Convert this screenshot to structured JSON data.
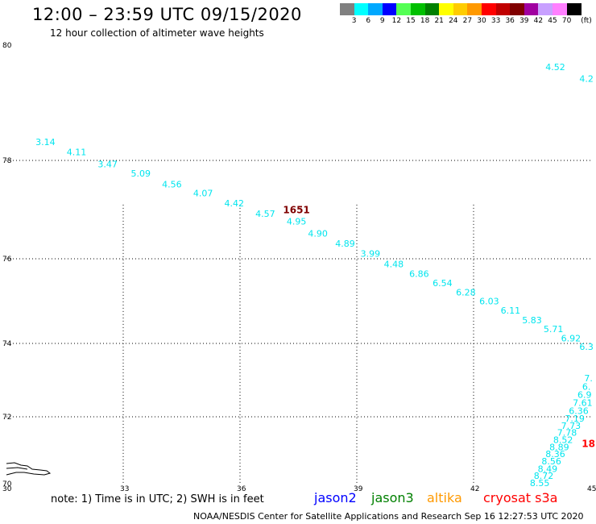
{
  "header": {
    "title": "12:00 – 23:59 UTC 09/15/2020",
    "subtitle": "12 hour collection of altimeter wave heights"
  },
  "legend": {
    "unit_label": "(ft)",
    "bins": [
      {
        "label": "3",
        "color": "#808080"
      },
      {
        "label": "6",
        "color": "#00ffff"
      },
      {
        "label": "9",
        "color": "#00a8ff"
      },
      {
        "label": "12",
        "color": "#0000ff"
      },
      {
        "label": "15",
        "color": "#54ff54"
      },
      {
        "label": "18",
        "color": "#00c000"
      },
      {
        "label": "21",
        "color": "#008000"
      },
      {
        "label": "24",
        "color": "#ffff00"
      },
      {
        "label": "27",
        "color": "#ffcc00"
      },
      {
        "label": "30",
        "color": "#ff9900"
      },
      {
        "label": "33",
        "color": "#ff0000"
      },
      {
        "label": "36",
        "color": "#c00000"
      },
      {
        "label": "39",
        "color": "#800000"
      },
      {
        "label": "42",
        "color": "#a000a0"
      },
      {
        "label": "45",
        "color": "#c8a0ff"
      },
      {
        "label": "70",
        "color": "#ff80ff"
      },
      {
        "label": "",
        "color": "#000000"
      }
    ]
  },
  "footer": {
    "note": "note:  1) Time is in UTC;  2) SWH is in feet",
    "satellites": [
      {
        "name": "jason2",
        "color": "#0000ff"
      },
      {
        "name": "jason3",
        "color": "#008000"
      },
      {
        "name": "altika",
        "color": "#ff9900"
      },
      {
        "name": "cryosat s3a",
        "color": "#ff0000"
      }
    ],
    "credit": "NOAA/NESDIS Center for Satellite Applications and Research    Sep 16 12:27:53 UTC 2020"
  },
  "chart_data": {
    "type": "scatter",
    "title": "12:00 – 23:59 UTC 09/15/2020",
    "subtitle": "12 hour collection of altimeter wave heights",
    "xlabel": "",
    "ylabel": "",
    "xlim": [
      30,
      45
    ],
    "ylim": [
      70,
      80
    ],
    "x_ticks": [
      "30",
      "33",
      "36",
      "39",
      "42",
      "45"
    ],
    "y_ticks": [
      "70",
      "72",
      "74",
      "76",
      "78",
      "80"
    ],
    "grid": true,
    "point_color": "#00e5ee",
    "series": [
      {
        "points": [
          {
            "x": 31.0,
            "y": 78.32,
            "label": "3.14"
          },
          {
            "x": 31.8,
            "y": 78.15,
            "label": "4.11"
          },
          {
            "x": 32.6,
            "y": 77.93,
            "label": "3.47"
          },
          {
            "x": 33.45,
            "y": 77.74,
            "label": "5.09"
          },
          {
            "x": 34.25,
            "y": 77.52,
            "label": "4.56"
          },
          {
            "x": 35.05,
            "y": 77.34,
            "label": "4.07"
          },
          {
            "x": 35.85,
            "y": 77.13,
            "label": "4.42"
          },
          {
            "x": 36.65,
            "y": 76.92,
            "label": "4.57"
          },
          {
            "x": 37.45,
            "y": 76.76,
            "label": "4.95"
          },
          {
            "x": 38.0,
            "y": 76.52,
            "label": "4.90"
          },
          {
            "x": 38.7,
            "y": 76.31,
            "label": "4.89"
          },
          {
            "x": 39.35,
            "y": 76.11,
            "label": "3.99"
          },
          {
            "x": 39.95,
            "y": 75.88,
            "label": "4.48"
          },
          {
            "x": 40.6,
            "y": 75.65,
            "label": "6.86"
          },
          {
            "x": 41.2,
            "y": 75.43,
            "label": "6.54"
          },
          {
            "x": 41.8,
            "y": 75.21,
            "label": "6.28"
          },
          {
            "x": 42.4,
            "y": 75.0,
            "label": "6.03"
          },
          {
            "x": 42.95,
            "y": 74.78,
            "label": "6.11"
          },
          {
            "x": 43.5,
            "y": 74.55,
            "label": "5.83"
          },
          {
            "x": 44.05,
            "y": 74.34,
            "label": "5.71"
          },
          {
            "x": 44.5,
            "y": 74.12,
            "label": "6.92"
          },
          {
            "x": 44.9,
            "y": 73.91,
            "label": "6.3"
          },
          {
            "x": 44.1,
            "y": 79.62,
            "label": "4.52"
          },
          {
            "x": 44.9,
            "y": 79.42,
            "label": "4.2"
          },
          {
            "x": 44.95,
            "y": 73.05,
            "label": "7."
          },
          {
            "x": 44.9,
            "y": 72.82,
            "label": "6."
          },
          {
            "x": 44.85,
            "y": 72.6,
            "label": "6.9"
          },
          {
            "x": 44.8,
            "y": 72.38,
            "label": "7.61"
          },
          {
            "x": 44.7,
            "y": 72.17,
            "label": "6.36"
          },
          {
            "x": 44.6,
            "y": 71.95,
            "label": "7.19"
          },
          {
            "x": 44.5,
            "y": 71.74,
            "label": "7.73"
          },
          {
            "x": 44.4,
            "y": 71.53,
            "label": "7.78"
          },
          {
            "x": 44.3,
            "y": 71.31,
            "label": "8.52"
          },
          {
            "x": 44.2,
            "y": 71.1,
            "label": "8.89"
          },
          {
            "x": 44.1,
            "y": 70.89,
            "label": "8.36"
          },
          {
            "x": 44.0,
            "y": 70.67,
            "label": "8.56"
          },
          {
            "x": 43.9,
            "y": 70.45,
            "label": "8.49"
          },
          {
            "x": 43.8,
            "y": 70.24,
            "label": "8.72"
          },
          {
            "x": 43.7,
            "y": 70.03,
            "label": "8.55"
          }
        ]
      }
    ],
    "annotations": [
      {
        "x": 37.45,
        "y": 76.99,
        "text": "1651",
        "color": "#800000"
      },
      {
        "x": 44.95,
        "y": 71.19,
        "text": "18",
        "color": "#ff0000"
      }
    ]
  }
}
